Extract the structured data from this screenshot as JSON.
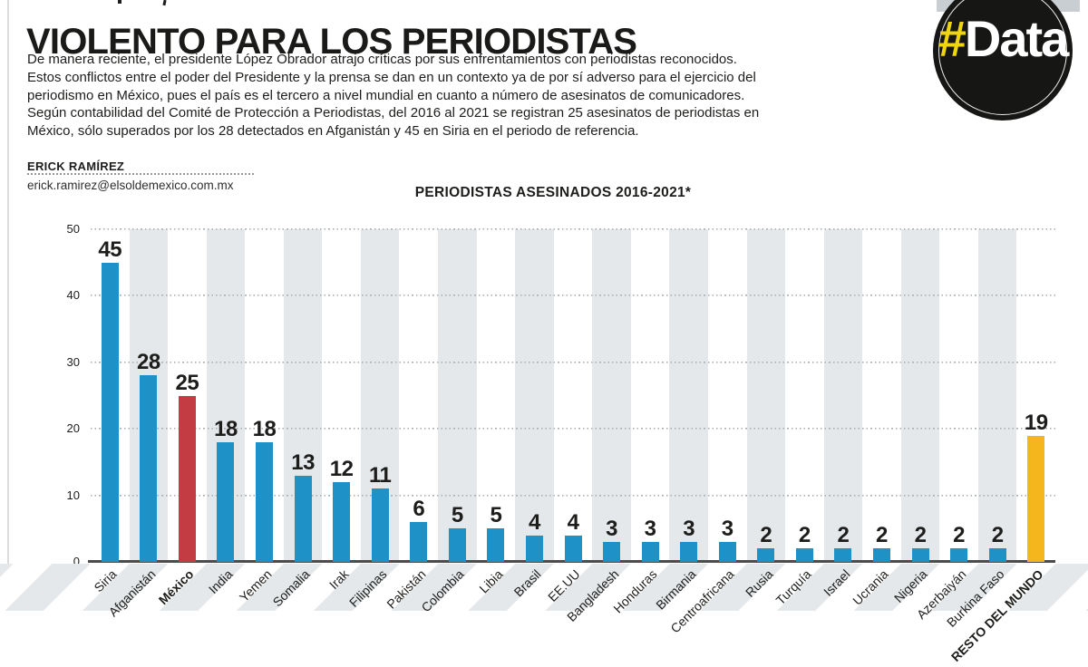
{
  "page": {
    "title": "VIOLENTO PARA LOS PERIODISTAS",
    "intro_lines": [
      "De manera reciente, el presidente López Obrador atrajo críticas por sus enfrentamientos con periodistas reconocidos.",
      "Estos conflictos entre el poder del Presidente y la prensa se dan en un contexto ya de por sí adverso para el ejercicio del",
      "periodismo en México, pues el país es el tercero a nivel mundial en cuanto a número de asesinatos de comunicadores.",
      "Según contabilidad del Comité de Protección a Periodistas, del 2016 al 2021 se registran 25 asesinatos de periodistas en",
      "México, sólo superados por los 28 detectados en Afganistán y 45 en Siria en el periodo de referencia."
    ],
    "byline": {
      "name": "ERICK RAMÍREZ",
      "email": "erick.ramirez@elsoldemexico.com.mx"
    },
    "logo": {
      "hash": "#",
      "word": "Data"
    }
  },
  "chart_data": {
    "type": "bar",
    "title": "PERIODISTAS ASESINADOS 2016-2021*",
    "ylim": [
      0,
      50
    ],
    "y_ticks": [
      0,
      10,
      20,
      30,
      40,
      50
    ],
    "grid": "dotted-horizontal",
    "background": "alternating vertical gray stripes",
    "palette": {
      "blue": "#1e92c6",
      "red": "#c33c44",
      "yellow": "#f5b51d",
      "stripe_gray": "#e4e8ea"
    },
    "bars": [
      {
        "label": "Siria",
        "value": 45,
        "color": "blue",
        "bold": false
      },
      {
        "label": "Afganistán",
        "value": 28,
        "color": "blue",
        "bold": false
      },
      {
        "label": "México",
        "value": 25,
        "color": "red",
        "bold": true
      },
      {
        "label": "India",
        "value": 18,
        "color": "blue",
        "bold": false
      },
      {
        "label": "Yemen",
        "value": 18,
        "color": "blue",
        "bold": false
      },
      {
        "label": "Somalia",
        "value": 13,
        "color": "blue",
        "bold": false
      },
      {
        "label": "Irak",
        "value": 12,
        "color": "blue",
        "bold": false
      },
      {
        "label": "Filipinas",
        "value": 11,
        "color": "blue",
        "bold": false
      },
      {
        "label": "Pakistán",
        "value": 6,
        "color": "blue",
        "bold": false
      },
      {
        "label": "Colombia",
        "value": 5,
        "color": "blue",
        "bold": false
      },
      {
        "label": "Libia",
        "value": 5,
        "color": "blue",
        "bold": false
      },
      {
        "label": "Brasil",
        "value": 4,
        "color": "blue",
        "bold": false
      },
      {
        "label": "EE.UU",
        "value": 4,
        "color": "blue",
        "bold": false
      },
      {
        "label": "Bangladesh",
        "value": 3,
        "color": "blue",
        "bold": false
      },
      {
        "label": "Honduras",
        "value": 3,
        "color": "blue",
        "bold": false
      },
      {
        "label": "Birmania",
        "value": 3,
        "color": "blue",
        "bold": false
      },
      {
        "label": "Centroafricana",
        "value": 3,
        "color": "blue",
        "bold": false
      },
      {
        "label": "Rusia",
        "value": 2,
        "color": "blue",
        "bold": false
      },
      {
        "label": "Turquía",
        "value": 2,
        "color": "blue",
        "bold": false
      },
      {
        "label": "Israel",
        "value": 2,
        "color": "blue",
        "bold": false
      },
      {
        "label": "Ucrania",
        "value": 2,
        "color": "blue",
        "bold": false
      },
      {
        "label": "Nigeria",
        "value": 2,
        "color": "blue",
        "bold": false
      },
      {
        "label": "Azerbaiyán",
        "value": 2,
        "color": "blue",
        "bold": false
      },
      {
        "label": "Burkina Faso",
        "value": 2,
        "color": "blue",
        "bold": false
      },
      {
        "label": "RESTO DEL MUNDO",
        "value": 19,
        "color": "yellow",
        "bold": true
      }
    ]
  }
}
